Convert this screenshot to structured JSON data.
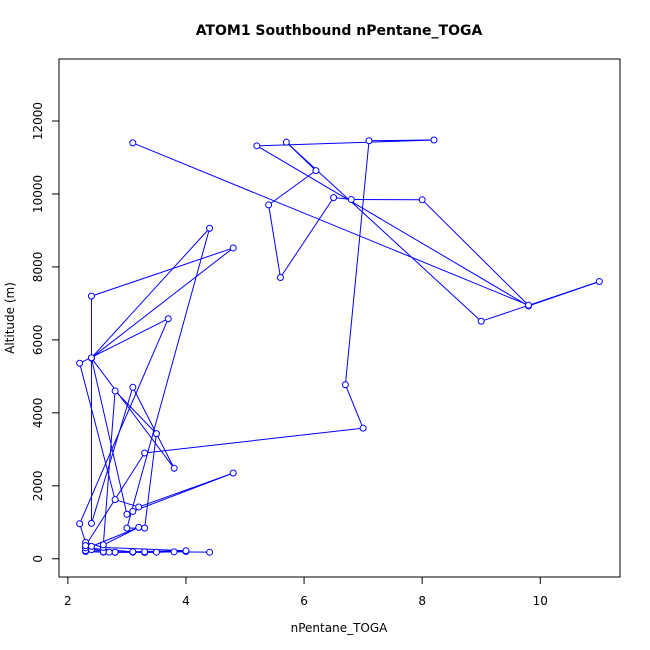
{
  "chart_data": {
    "type": "line",
    "title": "ATOM1 Southbound nPentane_TOGA",
    "xlabel": "nPentane_TOGA",
    "ylabel": "Altitude (m)",
    "xlim": [
      1.85,
      11.35
    ],
    "ylim": [
      -500,
      13700
    ],
    "xticks": [
      2,
      4,
      6,
      8,
      10
    ],
    "yticks": [
      0,
      2000,
      4000,
      6000,
      8000,
      10000,
      12000
    ],
    "xtick_labels": [
      "2",
      "4",
      "6",
      "8",
      "10"
    ],
    "ytick_labels": [
      "0",
      "2000",
      "4000",
      "6000",
      "8000",
      "10000",
      "12000"
    ],
    "grid": false,
    "series": [
      {
        "color": "#0000ff",
        "marker": "open-circle",
        "x": [
          4.4,
          3.8,
          3.3,
          3.1,
          2.8,
          2.3,
          2.6,
          2.3,
          2.4,
          2.8,
          3.1,
          3.3,
          4.0,
          3.5,
          2.6,
          3.1,
          2.3,
          2.7,
          4.0,
          2.6,
          2.3,
          2.2,
          3.7,
          2.2,
          2.8,
          3.2,
          4.8,
          3.1,
          3.0,
          2.4,
          3.8,
          3.1,
          2.4,
          2.4,
          4.8,
          2.4,
          4.4,
          3.0,
          3.3,
          3.5,
          2.8,
          2.6,
          3.2,
          2.4,
          2.3,
          3.3,
          7.0,
          6.7,
          7.1,
          8.2,
          5.2,
          9.8,
          11.0,
          9.0,
          5.7,
          6.2,
          5.4,
          5.6,
          6.5,
          6.8,
          8.0,
          9.8,
          3.1
        ],
        "y": [
          180,
          190,
          170,
          180,
          175,
          200,
          180,
          220,
          250,
          180,
          180,
          190,
          200,
          180,
          190,
          190,
          300,
          180,
          220,
          310,
          450,
          960,
          6580,
          5360,
          1620,
          1420,
          2350,
          1300,
          1220,
          5500,
          2480,
          4700,
          970,
          7200,
          8520,
          5510,
          9060,
          840,
          840,
          3430,
          4600,
          380,
          860,
          340,
          360,
          2900,
          3580,
          4770,
          11460,
          11480,
          11320,
          6930,
          7600,
          6510,
          11420,
          10640,
          9700,
          7710,
          9900,
          9850,
          9840,
          6950,
          11400
        ]
      }
    ]
  }
}
